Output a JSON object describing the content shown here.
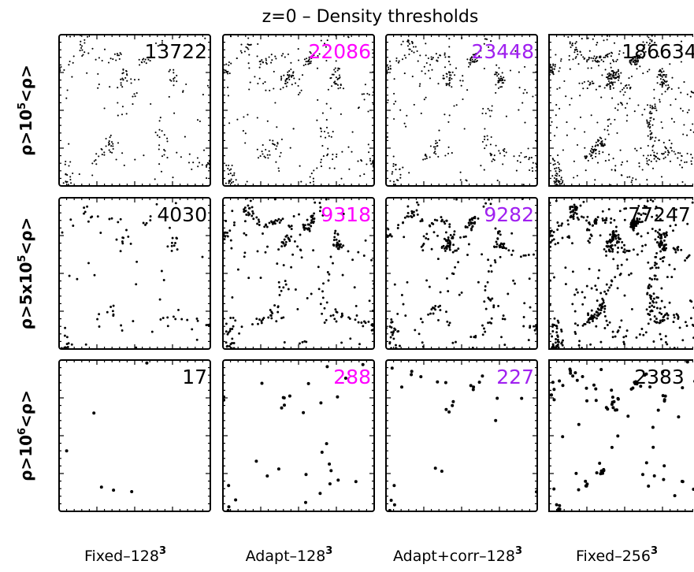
{
  "figure": {
    "title": "z=0 – Density thresholds"
  },
  "colors": {
    "fixed": "#000000",
    "adapt": "#ff00ff",
    "adapt_corr": "#a020f0"
  },
  "chart_data": {
    "type": "scatter",
    "grid": false,
    "columns": [
      {
        "name": "Fixed–128",
        "exp": "3",
        "color": "#000000"
      },
      {
        "name": "Adapt–128",
        "exp": "3",
        "color": "#ff00ff"
      },
      {
        "name": "Adapt+corr–128",
        "exp": "3",
        "color": "#a020f0"
      },
      {
        "name": "Fixed–256",
        "exp": "3",
        "color": "#000000"
      }
    ],
    "rows": [
      {
        "label_pre": "ρ>10",
        "label_exp": "5",
        "label_post": "<ρ>"
      },
      {
        "label_pre": "ρ>5x10",
        "label_exp": "5",
        "label_post": "<ρ>"
      },
      {
        "label_pre": "ρ>10",
        "label_exp": "6",
        "label_post": "<ρ>"
      }
    ],
    "counts": [
      [
        13722,
        22086,
        23448,
        186634
      ],
      [
        4030,
        9318,
        9282,
        77247
      ],
      [
        17,
        288,
        227,
        2383
      ]
    ],
    "displayed_points": [
      [
        220,
        320,
        330,
        700
      ],
      [
        95,
        290,
        290,
        620
      ],
      [
        6,
        32,
        26,
        90
      ]
    ],
    "sparse_points": {
      "r2c0": [
        [
          0.23,
          0.35
        ],
        [
          0.28,
          0.84
        ],
        [
          0.36,
          0.86
        ],
        [
          0.48,
          0.87
        ],
        [
          0.58,
          0.02
        ],
        [
          0.05,
          0.6
        ]
      ]
    }
  }
}
